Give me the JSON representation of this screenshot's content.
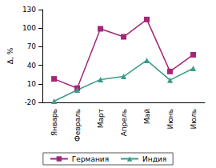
{
  "chart_data": {
    "type": "line",
    "y_label": "Δ, %",
    "categories": [
      "Январь",
      "Февраль",
      "Март",
      "Апрель",
      "Май",
      "Июнь",
      "Июль"
    ],
    "series": [
      {
        "name": "Германия",
        "color": "#a3267a",
        "marker": "square",
        "values": [
          18,
          3,
          99,
          86,
          114,
          30,
          57
        ]
      },
      {
        "name": "Индия",
        "color": "#3a9c88",
        "marker": "triangle",
        "values": [
          -18,
          0,
          17,
          22,
          48,
          16,
          35
        ]
      }
    ],
    "ylim": [
      -20,
      130
    ],
    "yticks": [
      -20,
      10,
      40,
      70,
      100,
      130
    ],
    "grid": false,
    "legend": "bottom"
  }
}
